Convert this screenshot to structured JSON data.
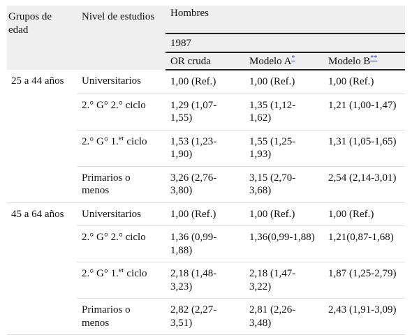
{
  "header": {
    "group_label": "Grupos de edad",
    "level_label": "Nivel de estudios",
    "sex": "Hombres",
    "year": "1987",
    "columns": [
      {
        "text": "OR cruda"
      },
      {
        "text": "Modelo A",
        "sup": "*"
      },
      {
        "text": "Modelo B",
        "sup": "**"
      }
    ]
  },
  "groups": [
    {
      "label": "25 a 44 años",
      "rows": [
        {
          "level": {
            "text": "Universitarios"
          },
          "values": [
            "1,00 (Ref.)",
            "1,00 (Ref.)",
            "1,00 (Ref.)"
          ]
        },
        {
          "level": {
            "text": "2.° G° 2.° ciclo"
          },
          "values": [
            "1,29 (1,07-1,55)",
            "1,35 (1,12-1,62)",
            "1,21 (1,00-1,47)"
          ]
        },
        {
          "level": {
            "text": "2.° G° 1.",
            "sup": "er",
            "after": " ciclo"
          },
          "values": [
            "1,53 (1,23-1,90)",
            "1,55 (1,25-1,93)",
            "1,31 (1,05-1,65)"
          ]
        },
        {
          "level": {
            "text": "Primarios o menos"
          },
          "values": [
            "3,26 (2,76-3,80)",
            "3,15 (2,70-3,68)",
            "2,54 (2,14-3,01)"
          ]
        }
      ]
    },
    {
      "label": "45 a 64 años",
      "rows": [
        {
          "level": {
            "text": "Universitarios"
          },
          "values": [
            "1,00 (Ref.)",
            "1,00 (Ref.)",
            "1,00 (Ref.)"
          ]
        },
        {
          "level": {
            "text": "2.° G° 2.° ciclo"
          },
          "values": [
            "1,36 (0,99-1,88)",
            "1,36(0,99-1,88)",
            "1,21(0,87-1,68)"
          ]
        },
        {
          "level": {
            "text": "2.° G° 1.",
            "sup": "er",
            "after": " ciclo"
          },
          "values": [
            "2,18 (1,48-3,23)",
            "2,18 (1,47-3,22)",
            "1,87 (1,25-2,79)"
          ]
        },
        {
          "level": {
            "text": "Primarios o menos"
          },
          "values": [
            "2,82 (2,27-3,51)",
            "2,81 (2,26-3,48)",
            "2,43 (1,91-3,09)"
          ]
        }
      ]
    }
  ]
}
